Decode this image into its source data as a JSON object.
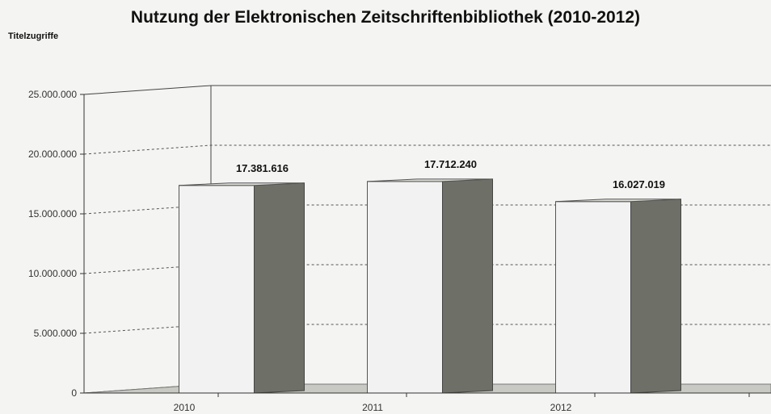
{
  "chart_title": "Nutzung der Elektronischen Zeitschriftenbibliothek (2010-2012)",
  "colors": {
    "bar_front": "#f2f2f2",
    "bar_side": "#6e6f66",
    "bar_top": "#dcdcd6",
    "grid": "#555555",
    "floor": "#c9c9c4"
  },
  "chart_data": {
    "type": "bar",
    "title": "Nutzung der Elektronischen Zeitschriftenbibliothek (2010-2012)",
    "ylabel": "Titelzugriffe",
    "xlabel": "",
    "categories": [
      "2010",
      "2011",
      "2012"
    ],
    "values": [
      17381616,
      17712240,
      16027019
    ],
    "value_labels": [
      "17.381.616",
      "17.712.240",
      "16.027.019"
    ],
    "ylim": [
      0,
      25000000
    ],
    "yticks": [
      0,
      5000000,
      10000000,
      15000000,
      20000000,
      25000000
    ],
    "ytick_labels": [
      "0",
      "5.000.000",
      "10.000.000",
      "15.000.000",
      "20.000.000",
      "25.000.000"
    ],
    "grid": true,
    "style": "3d"
  }
}
